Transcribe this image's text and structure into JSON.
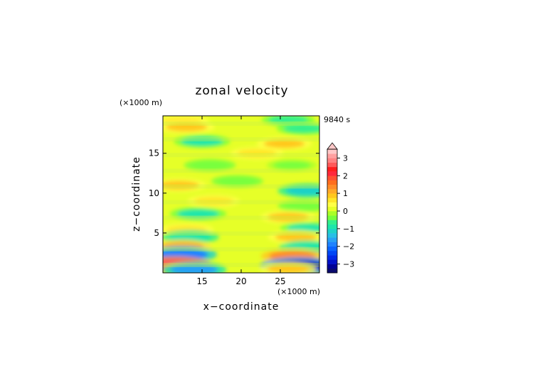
{
  "chart_data": {
    "type": "heatmap",
    "title": "zonal velocity",
    "xlabel": "x−coordinate",
    "ylabel": "z−coordinate",
    "x_unit": "(×1000 m)",
    "y_unit": "(×1000 m)",
    "time_label": "9840 s",
    "xlim": [
      10,
      30
    ],
    "ylim": [
      0,
      19.7
    ],
    "x_ticks": [
      "15",
      "20",
      "25"
    ],
    "y_ticks": [
      "5",
      "10",
      "15"
    ],
    "colorbar": {
      "levels": [
        -3.5,
        -3.25,
        -3,
        -2.75,
        -2.5,
        -2.25,
        -2,
        -1.75,
        -1.5,
        -1.25,
        -1,
        -0.75,
        -0.5,
        -0.25,
        0,
        0.25,
        0.5,
        0.75,
        1,
        1.25,
        1.5,
        1.75,
        2,
        2.25,
        2.5,
        2.75,
        3,
        3.25,
        3.5
      ],
      "colors": [
        "#0a0a6e",
        "#000096",
        "#0010c8",
        "#0028e6",
        "#0046f5",
        "#0a64ff",
        "#1e82ff",
        "#28a0f5",
        "#28bee6",
        "#1ed2c8",
        "#1ee6aa",
        "#32f08c",
        "#78ff3c",
        "#aaff28",
        "#e6ff28",
        "#ffff46",
        "#ffe628",
        "#ffc81e",
        "#ffaa28",
        "#ff8c28",
        "#ff6e1e",
        "#ff5032",
        "#ff283c",
        "#ff1e1e",
        "#ff5a5a",
        "#ff8282",
        "#ffa0a0",
        "#ffc8c8"
      ],
      "tick_labels": [
        "3",
        "2",
        "1",
        "0",
        "−1",
        "−2",
        "−3"
      ],
      "extend": "max"
    },
    "grid": false,
    "features": [
      {
        "x": 12.5,
        "z": 19.0,
        "value": 0.6
      },
      {
        "x": 26.0,
        "z": 19.2,
        "value": -0.6
      },
      {
        "x": 13.0,
        "z": 18.3,
        "value": 0.9
      },
      {
        "x": 28.0,
        "z": 18.1,
        "value": -0.7
      },
      {
        "x": 15.0,
        "z": 16.5,
        "value": -0.9
      },
      {
        "x": 25.5,
        "z": 16.2,
        "value": 0.8
      },
      {
        "x": 22.0,
        "z": 15.0,
        "value": 0.6
      },
      {
        "x": 16.0,
        "z": 13.5,
        "value": -0.5
      },
      {
        "x": 26.5,
        "z": 13.5,
        "value": -0.4
      },
      {
        "x": 12.0,
        "z": 11.0,
        "value": 0.8
      },
      {
        "x": 19.5,
        "z": 11.5,
        "value": -0.5
      },
      {
        "x": 28.5,
        "z": 10.3,
        "value": -1.2
      },
      {
        "x": 16.5,
        "z": 9.0,
        "value": 0.6
      },
      {
        "x": 28.0,
        "z": 8.4,
        "value": -0.5
      },
      {
        "x": 14.5,
        "z": 7.4,
        "value": -0.9
      },
      {
        "x": 26.0,
        "z": 7.0,
        "value": 0.8
      },
      {
        "x": 13.0,
        "z": 5.4,
        "value": 0.7
      },
      {
        "x": 28.5,
        "z": 5.6,
        "value": -0.8
      },
      {
        "x": 13.5,
        "z": 4.5,
        "value": -1.0
      },
      {
        "x": 27.0,
        "z": 4.5,
        "value": 0.9
      },
      {
        "x": 12.5,
        "z": 3.3,
        "value": 1.0
      },
      {
        "x": 28.5,
        "z": 3.2,
        "value": -1.0
      },
      {
        "x": 12.5,
        "z": 2.3,
        "value": -2.0
      },
      {
        "x": 26.5,
        "z": 2.1,
        "value": 1.4
      },
      {
        "x": 11.5,
        "z": 1.0,
        "value": 2.5
      },
      {
        "x": 27.5,
        "z": 0.9,
        "value": -2.9
      },
      {
        "x": 14.0,
        "z": 0.4,
        "value": -1.6
      },
      {
        "x": 26.0,
        "z": 0.5,
        "value": 0.9
      }
    ]
  }
}
